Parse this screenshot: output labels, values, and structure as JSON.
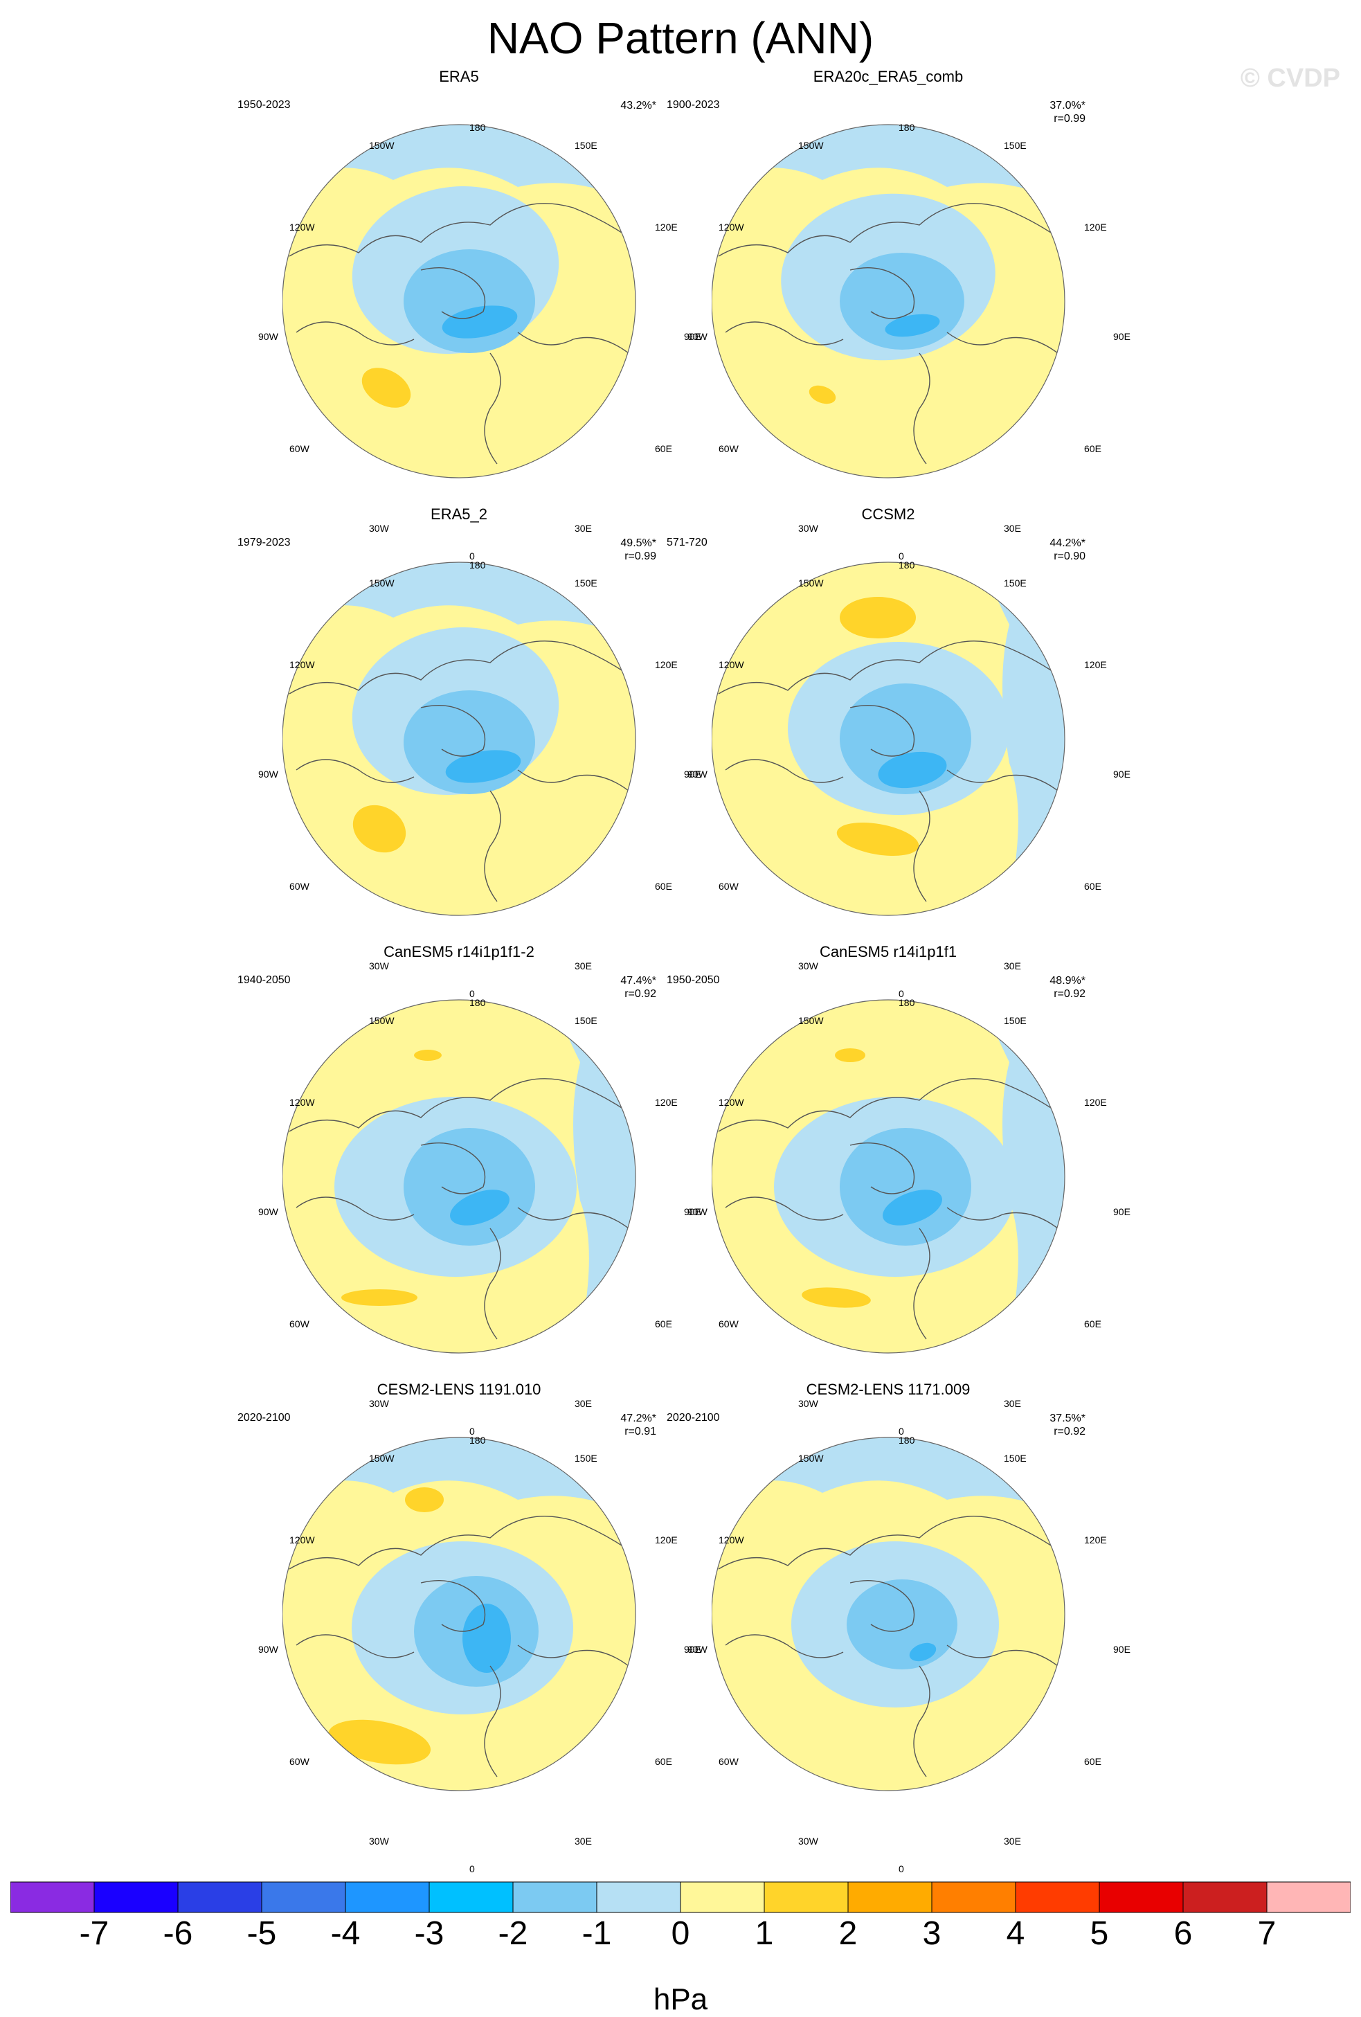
{
  "page": {
    "title": "NAO Pattern (ANN)",
    "watermark": "© CVDP"
  },
  "chart_data": {
    "type": "polar-contour-map",
    "projection": "north-polar-stereographic",
    "units": "hPa",
    "longitude_labels": [
      "180",
      "150E",
      "120E",
      "90E",
      "60E",
      "30E",
      "0",
      "30W",
      "60W",
      "90W",
      "120W",
      "150W"
    ],
    "panels": [
      {
        "name": "ERA5",
        "period": "1950-2023",
        "pct": "43.2%*",
        "r": ""
      },
      {
        "name": "ERA20c_ERA5_comb",
        "period": "1900-2023",
        "pct": "37.0%*",
        "r": "r=0.99"
      },
      {
        "name": "ERA5_2",
        "period": "1979-2023",
        "pct": "49.5%*",
        "r": "r=0.99"
      },
      {
        "name": "CCSM2",
        "period": "571-720",
        "pct": "44.2%*",
        "r": "r=0.90"
      },
      {
        "name": "CanESM5 r14i1p1f1-2",
        "period": "1940-2050",
        "pct": "47.4%*",
        "r": "r=0.92"
      },
      {
        "name": "CanESM5 r14i1p1f1",
        "period": "1950-2050",
        "pct": "48.9%*",
        "r": "r=0.92"
      },
      {
        "name": "CESM2-LENS 1191.010",
        "period": "2020-2100",
        "pct": "47.2%*",
        "r": "r=0.91"
      },
      {
        "name": "CESM2-LENS 1171.009",
        "period": "2020-2100",
        "pct": "37.5%*",
        "r": "r=0.92"
      }
    ],
    "colorbar": {
      "label": "hPa",
      "ticks": [
        "-7",
        "-6",
        "-5",
        "-4",
        "-3",
        "-2",
        "-1",
        "0",
        "1",
        "2",
        "3",
        "4",
        "5",
        "6",
        "7"
      ],
      "colors": [
        "#8a2be2",
        "#1a00ff",
        "#2a3fe6",
        "#3a78ea",
        "#1e96ff",
        "#00c0ff",
        "#7ccaf2",
        "#b6e0f4",
        "#fff799",
        "#ffd42a",
        "#ffab00",
        "#ff7f00",
        "#ff3c00",
        "#e80000",
        "#cc1f1f",
        "#ffb6b6"
      ]
    },
    "colors": {
      "background_pos": "#fff799",
      "background_neg": "#b6e0f4",
      "level_-2": "#7ccaf2",
      "level_-3": "#3db6f4",
      "level_2": "#ffd42a",
      "coast": "#555555"
    }
  }
}
